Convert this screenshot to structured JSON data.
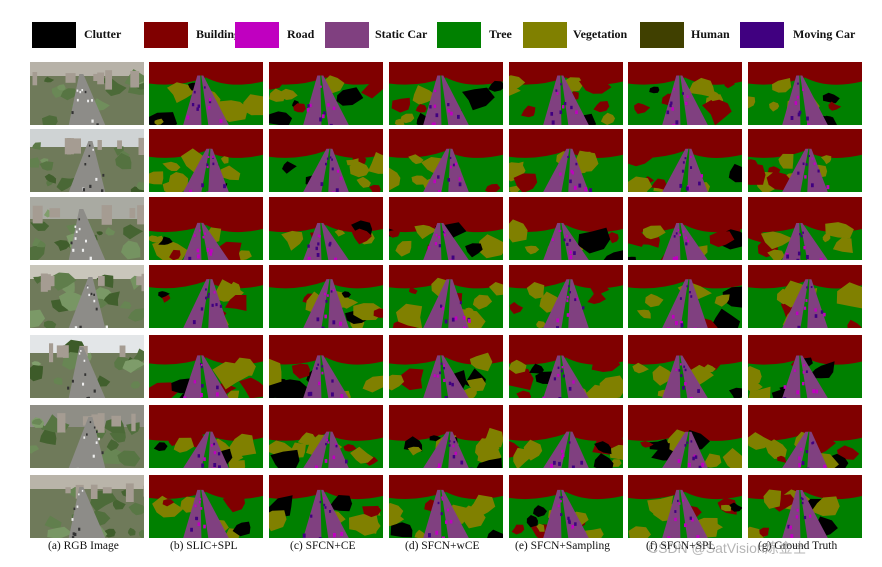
{
  "legend": [
    {
      "label": "Clutter",
      "color": "#000000"
    },
    {
      "label": "Building",
      "color": "#800000"
    },
    {
      "label": "Road",
      "color": "#C000C0"
    },
    {
      "label": "Static Car",
      "color": "#804080"
    },
    {
      "label": "Tree",
      "color": "#008000"
    },
    {
      "label": "Vegetation",
      "color": "#808000"
    },
    {
      "label": "Human",
      "color": "#404000"
    },
    {
      "label": "Moving Car",
      "color": "#400080"
    }
  ],
  "columns": [
    {
      "caption": "(a) RGB Image",
      "kind": "rgb"
    },
    {
      "caption": "(b) SLIC+SPL",
      "kind": "seg"
    },
    {
      "caption": "(c) SFCN+CE",
      "kind": "seg"
    },
    {
      "caption": "(d) SFCN+wCE",
      "kind": "seg"
    },
    {
      "caption": "(e) SFCN+Sampling",
      "kind": "seg"
    },
    {
      "caption": "(f) SFCN+SPL",
      "kind": "seg"
    },
    {
      "caption": "(g) Ground Truth",
      "kind": "seg"
    }
  ],
  "row_count": 7,
  "watermark": "CSDN @SatVision炼金士"
}
